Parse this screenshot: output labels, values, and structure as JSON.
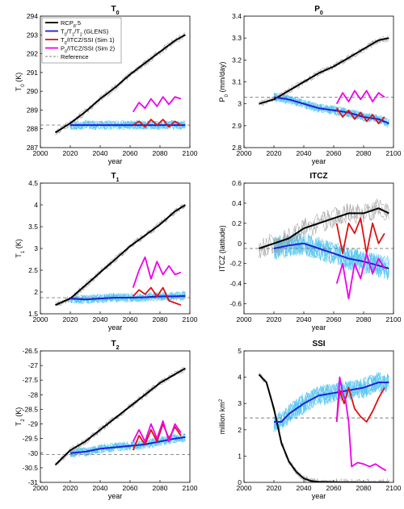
{
  "colors": {
    "rcp85": "#000000",
    "rcp85_member": "#9a9a9a",
    "glens": "#1f1fd6",
    "glens_member": "#4fc3f0",
    "sim1": "#e01010",
    "sim2": "#ee00ee",
    "reference": "#808080"
  },
  "legend": {
    "placement": "top-left of first panel",
    "items": [
      {
        "label": "RCP8.5",
        "color_key": "rcp85",
        "style": "solid"
      },
      {
        "label": "T0/T1/T2 (GLENS)",
        "color_key": "glens",
        "style": "solid"
      },
      {
        "label": "T0/ITCZ/SSI (Sim 1)",
        "color_key": "sim1",
        "style": "solid"
      },
      {
        "label": "P0/ITCZ/SSI (Sim 2)",
        "color_key": "sim2",
        "style": "solid"
      },
      {
        "label": "Reference",
        "color_key": "reference",
        "style": "dashed"
      }
    ]
  },
  "chart_data": [
    {
      "type": "line",
      "title": "T0",
      "xlabel": "year",
      "ylabel": "T0 (K)",
      "xlim": [
        2000,
        2100
      ],
      "ylim": [
        287,
        294
      ],
      "xticks": [
        2000,
        2020,
        2040,
        2060,
        2080,
        2100
      ],
      "yticks": [
        287,
        288,
        289,
        290,
        291,
        292,
        293,
        294
      ],
      "reference": 288.2,
      "series": [
        {
          "name": "RCP8.5",
          "key": "rcp85",
          "x": [
            2010,
            2020,
            2030,
            2040,
            2050,
            2060,
            2070,
            2080,
            2090,
            2097
          ],
          "y": [
            287.8,
            288.3,
            288.9,
            289.6,
            290.2,
            290.9,
            291.5,
            292.1,
            292.7,
            293.0
          ]
        },
        {
          "name": "T0/T1/T2 (GLENS)",
          "key": "glens",
          "x": [
            2020,
            2030,
            2040,
            2050,
            2060,
            2070,
            2080,
            2090,
            2097
          ],
          "y": [
            288.2,
            288.2,
            288.2,
            288.2,
            288.2,
            288.2,
            288.2,
            288.2,
            288.2
          ]
        },
        {
          "name": "T0/ITCZ/SSI (Sim 1)",
          "key": "sim1",
          "x": [
            2062,
            2066,
            2070,
            2074,
            2078,
            2082,
            2086,
            2090,
            2094
          ],
          "y": [
            288.2,
            288.4,
            288.1,
            288.5,
            288.2,
            288.5,
            288.1,
            288.4,
            288.2
          ]
        },
        {
          "name": "P0/ITCZ/SSI (Sim 2)",
          "key": "sim2",
          "x": [
            2062,
            2066,
            2070,
            2074,
            2078,
            2082,
            2086,
            2090,
            2094
          ],
          "y": [
            288.9,
            289.4,
            289.1,
            289.6,
            289.2,
            289.7,
            289.3,
            289.7,
            289.6
          ]
        }
      ]
    },
    {
      "type": "line",
      "title": "P0",
      "xlabel": "year",
      "ylabel": "P0 (mm/day)",
      "xlim": [
        2000,
        2100
      ],
      "ylim": [
        2.8,
        3.4
      ],
      "xticks": [
        2000,
        2020,
        2040,
        2060,
        2080,
        2100
      ],
      "yticks": [
        2.8,
        2.9,
        3.0,
        3.1,
        3.2,
        3.3,
        3.4
      ],
      "reference": 3.03,
      "series": [
        {
          "name": "RCP8.5",
          "key": "rcp85",
          "x": [
            2010,
            2020,
            2030,
            2040,
            2050,
            2060,
            2070,
            2080,
            2090,
            2097
          ],
          "y": [
            3.0,
            3.02,
            3.06,
            3.1,
            3.14,
            3.17,
            3.21,
            3.25,
            3.29,
            3.3
          ]
        },
        {
          "name": "T0/T1/T2 (GLENS)",
          "key": "glens",
          "x": [
            2020,
            2030,
            2040,
            2050,
            2060,
            2070,
            2080,
            2090,
            2097
          ],
          "y": [
            3.03,
            3.02,
            3.0,
            2.98,
            2.97,
            2.96,
            2.94,
            2.93,
            2.91
          ]
        },
        {
          "name": "T0/ITCZ/SSI (Sim 1)",
          "key": "sim1",
          "x": [
            2062,
            2066,
            2070,
            2074,
            2078,
            2082,
            2086,
            2090,
            2094
          ],
          "y": [
            2.98,
            2.94,
            2.97,
            2.93,
            2.96,
            2.92,
            2.95,
            2.91,
            2.94
          ]
        },
        {
          "name": "P0/ITCZ/SSI (Sim 2)",
          "key": "sim2",
          "x": [
            2062,
            2066,
            2070,
            2074,
            2078,
            2082,
            2086,
            2090,
            2094
          ],
          "y": [
            3.0,
            3.05,
            3.01,
            3.06,
            3.02,
            3.06,
            3.01,
            3.05,
            3.03
          ]
        }
      ]
    },
    {
      "type": "line",
      "title": "T1",
      "xlabel": "year",
      "ylabel": "T1 (K)",
      "xlim": [
        2000,
        2100
      ],
      "ylim": [
        1.5,
        4.5
      ],
      "xticks": [
        2000,
        2020,
        2040,
        2060,
        2080,
        2100
      ],
      "yticks": [
        1.5,
        2.0,
        2.5,
        3.0,
        3.5,
        4.0,
        4.5
      ],
      "reference": 1.87,
      "series": [
        {
          "name": "RCP8.5",
          "key": "rcp85",
          "x": [
            2010,
            2020,
            2030,
            2040,
            2050,
            2060,
            2070,
            2080,
            2090,
            2097
          ],
          "y": [
            1.7,
            1.85,
            2.15,
            2.45,
            2.75,
            3.05,
            3.3,
            3.55,
            3.85,
            4.0
          ]
        },
        {
          "name": "T0/T1/T2 (GLENS)",
          "key": "glens",
          "x": [
            2020,
            2030,
            2040,
            2050,
            2060,
            2070,
            2080,
            2090,
            2097
          ],
          "y": [
            1.85,
            1.83,
            1.85,
            1.87,
            1.87,
            1.88,
            1.9,
            1.9,
            1.91
          ]
        },
        {
          "name": "T0/ITCZ/SSI (Sim 1)",
          "key": "sim1",
          "x": [
            2062,
            2066,
            2070,
            2074,
            2078,
            2082,
            2086,
            2090,
            2094
          ],
          "y": [
            1.9,
            2.05,
            1.95,
            2.1,
            1.9,
            2.1,
            1.8,
            1.75,
            1.7
          ]
        },
        {
          "name": "P0/ITCZ/SSI (Sim 2)",
          "key": "sim2",
          "x": [
            2062,
            2066,
            2070,
            2074,
            2078,
            2082,
            2086,
            2090,
            2094
          ],
          "y": [
            2.1,
            2.5,
            2.8,
            2.3,
            2.7,
            2.4,
            2.6,
            2.4,
            2.45
          ]
        }
      ]
    },
    {
      "type": "line",
      "title": "ITCZ",
      "xlabel": "year",
      "ylabel": "ITCZ (latitude)",
      "xlim": [
        2000,
        2100
      ],
      "ylim": [
        -0.7,
        0.6
      ],
      "xticks": [
        2000,
        2020,
        2040,
        2060,
        2080,
        2100
      ],
      "yticks": [
        -0.6,
        -0.4,
        -0.2,
        0,
        0.2,
        0.4,
        0.6
      ],
      "reference": -0.05,
      "series": [
        {
          "name": "RCP8.5",
          "key": "rcp85",
          "x": [
            2010,
            2020,
            2030,
            2040,
            2050,
            2060,
            2070,
            2080,
            2090,
            2097
          ],
          "y": [
            -0.05,
            0.0,
            0.05,
            0.15,
            0.2,
            0.25,
            0.3,
            0.3,
            0.35,
            0.3
          ]
        },
        {
          "name": "T0/T1/T2 (GLENS)",
          "key": "glens",
          "x": [
            2020,
            2030,
            2040,
            2050,
            2060,
            2070,
            2080,
            2090,
            2097
          ],
          "y": [
            -0.05,
            -0.02,
            0.0,
            -0.05,
            -0.1,
            -0.15,
            -0.18,
            -0.22,
            -0.25
          ]
        },
        {
          "name": "T0/ITCZ/SSI (Sim 1)",
          "key": "sim1",
          "x": [
            2062,
            2066,
            2070,
            2074,
            2078,
            2082,
            2086,
            2090,
            2094
          ],
          "y": [
            0.2,
            -0.1,
            0.2,
            0.1,
            0.25,
            -0.1,
            0.2,
            0.0,
            0.1
          ]
        },
        {
          "name": "P0/ITCZ/SSI (Sim 2)",
          "key": "sim2",
          "x": [
            2062,
            2066,
            2070,
            2074,
            2078,
            2082,
            2086,
            2090,
            2094
          ],
          "y": [
            -0.4,
            -0.2,
            -0.55,
            -0.2,
            -0.35,
            -0.1,
            -0.3,
            -0.15,
            -0.25
          ]
        }
      ]
    },
    {
      "type": "line",
      "title": "T2",
      "xlabel": "year",
      "ylabel": "T2 (K)",
      "xlim": [
        2000,
        2100
      ],
      "ylim": [
        -31,
        -26.5
      ],
      "xticks": [
        2000,
        2020,
        2040,
        2060,
        2080,
        2100
      ],
      "yticks": [
        -31,
        -30.5,
        -30,
        -29.5,
        -29,
        -28.5,
        -28,
        -27.5,
        -27,
        -26.5
      ],
      "reference": -30.05,
      "series": [
        {
          "name": "RCP8.5",
          "key": "rcp85",
          "x": [
            2010,
            2020,
            2030,
            2040,
            2050,
            2060,
            2070,
            2080,
            2090,
            2097
          ],
          "y": [
            -30.4,
            -29.9,
            -29.6,
            -29.2,
            -28.8,
            -28.4,
            -28.0,
            -27.6,
            -27.3,
            -27.1
          ]
        },
        {
          "name": "T0/T1/T2 (GLENS)",
          "key": "glens",
          "x": [
            2020,
            2030,
            2040,
            2050,
            2060,
            2070,
            2080,
            2090,
            2097
          ],
          "y": [
            -30.0,
            -29.95,
            -29.85,
            -29.8,
            -29.75,
            -29.7,
            -29.6,
            -29.5,
            -29.45
          ]
        },
        {
          "name": "T0/ITCZ/SSI (Sim 1)",
          "key": "sim1",
          "x": [
            2062,
            2066,
            2070,
            2074,
            2078,
            2082,
            2086,
            2090,
            2094
          ],
          "y": [
            -29.9,
            -29.4,
            -29.7,
            -29.2,
            -29.6,
            -29.0,
            -29.5,
            -29.1,
            -29.4
          ]
        },
        {
          "name": "P0/ITCZ/SSI (Sim 2)",
          "key": "sim2",
          "x": [
            2062,
            2066,
            2070,
            2074,
            2078,
            2082,
            2086,
            2090,
            2094
          ],
          "y": [
            -29.6,
            -29.2,
            -29.6,
            -29.0,
            -29.5,
            -28.9,
            -29.6,
            -29.0,
            -29.3
          ]
        }
      ]
    },
    {
      "type": "line",
      "title": "SSI",
      "xlabel": "year",
      "ylabel": "million km2",
      "xlim": [
        2000,
        2100
      ],
      "ylim": [
        0,
        5
      ],
      "xticks": [
        2000,
        2020,
        2040,
        2060,
        2080,
        2100
      ],
      "yticks": [
        0,
        1,
        2,
        3,
        4,
        5
      ],
      "reference": 2.45,
      "series": [
        {
          "name": "RCP8.5",
          "key": "rcp85",
          "x": [
            2010,
            2015,
            2020,
            2025,
            2030,
            2035,
            2040,
            2045,
            2050,
            2060,
            2080,
            2097
          ],
          "y": [
            4.1,
            3.8,
            2.8,
            1.5,
            0.8,
            0.4,
            0.15,
            0.05,
            0.02,
            0.01,
            0.0,
            0.0
          ]
        },
        {
          "name": "T0/T1/T2 (GLENS)",
          "key": "glens",
          "x": [
            2020,
            2025,
            2030,
            2040,
            2050,
            2060,
            2070,
            2080,
            2090,
            2097
          ],
          "y": [
            2.3,
            2.3,
            2.6,
            3.0,
            3.3,
            3.4,
            3.5,
            3.6,
            3.8,
            3.8
          ]
        },
        {
          "name": "T0/ITCZ/SSI (Sim 1)",
          "key": "sim1",
          "x": [
            2062,
            2064,
            2067,
            2070,
            2074,
            2078,
            2082,
            2086,
            2090,
            2094
          ],
          "y": [
            2.3,
            3.5,
            3.0,
            3.6,
            2.8,
            2.5,
            2.3,
            2.7,
            3.2,
            3.6
          ]
        },
        {
          "name": "P0/ITCZ/SSI (Sim 2)",
          "key": "sim2",
          "x": [
            2062,
            2064,
            2066,
            2068,
            2070,
            2072,
            2076,
            2080,
            2084,
            2088,
            2092,
            2095
          ],
          "y": [
            2.3,
            4.0,
            3.4,
            3.1,
            2.3,
            0.6,
            0.75,
            0.7,
            0.6,
            0.7,
            0.55,
            0.45
          ]
        }
      ]
    }
  ]
}
